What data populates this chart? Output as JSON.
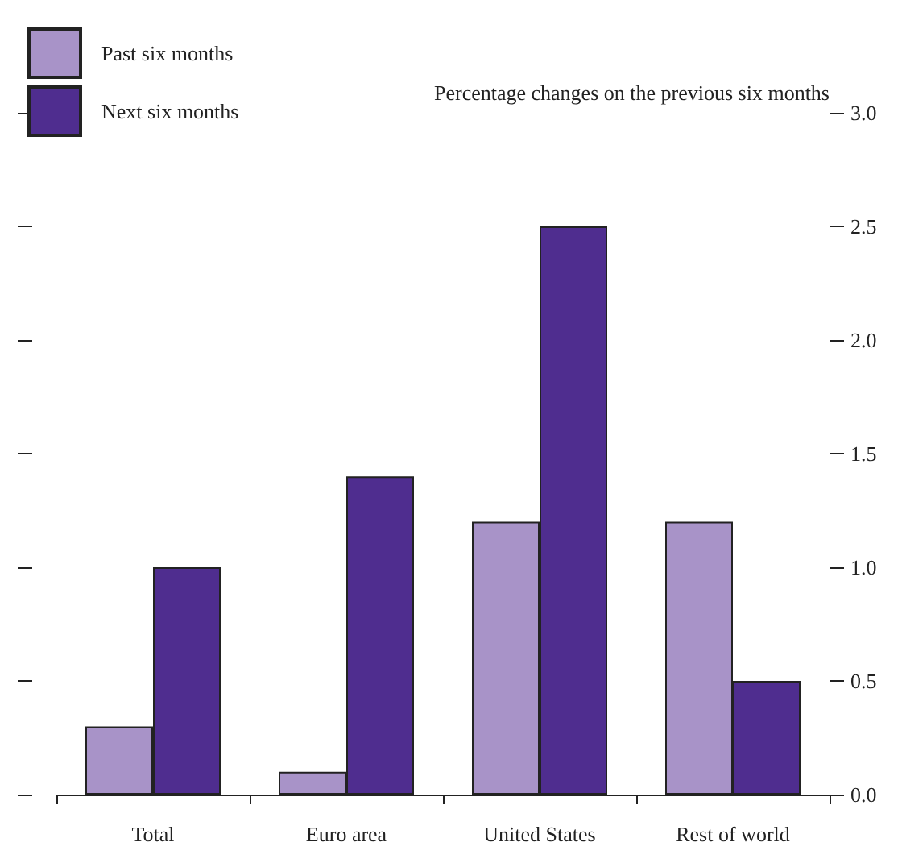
{
  "chart_data": {
    "type": "bar",
    "ylabel": "Percentage changes on the previous six months",
    "categories": [
      "Total",
      "Euro area",
      "United States",
      "Rest of world"
    ],
    "series": [
      {
        "name": "Past six months",
        "color": "#a893c8",
        "values": [
          0.3,
          0.1,
          1.2,
          1.2
        ]
      },
      {
        "name": "Next six months",
        "color": "#4f2d8f",
        "values": [
          1.0,
          1.4,
          2.5,
          0.5
        ]
      }
    ],
    "ylim": [
      0,
      3
    ],
    "yticks": [
      {
        "value": 0,
        "label": "0.0"
      },
      {
        "value": 0.5,
        "label": "0.5"
      },
      {
        "value": 1,
        "label": "1.0"
      },
      {
        "value": 1.5,
        "label": "1.5"
      },
      {
        "value": 2,
        "label": "2.0"
      },
      {
        "value": 2.5,
        "label": "2.5"
      },
      {
        "value": 3,
        "label": "3.0"
      }
    ],
    "grid": false,
    "legend": "top left"
  }
}
